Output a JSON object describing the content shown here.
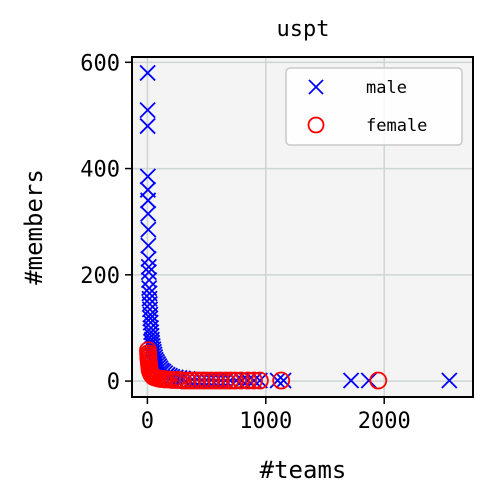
{
  "chart_data": {
    "type": "scatter",
    "title": "uspt",
    "xlabel": "#teams",
    "ylabel": "#members",
    "xlim": [
      -130,
      2750
    ],
    "ylim": [
      -30,
      610
    ],
    "xticks": [
      0,
      1000,
      2000
    ],
    "yticks": [
      0,
      200,
      400,
      600
    ],
    "x_tick_labels": [
      "0",
      "1000",
      "2000"
    ],
    "y_tick_labels": [
      "0",
      "200",
      "400",
      "600"
    ],
    "grid": true,
    "legend_position": "top-right",
    "series": [
      {
        "name": "male",
        "marker": "x",
        "color": "#0000ff",
        "points": [
          [
            2,
            580
          ],
          [
            2,
            510
          ],
          [
            2,
            480
          ],
          [
            4,
            385
          ],
          [
            4,
            360
          ],
          [
            6,
            340
          ],
          [
            6,
            315
          ],
          [
            8,
            285
          ],
          [
            8,
            255
          ],
          [
            10,
            230
          ],
          [
            12,
            215
          ],
          [
            12,
            205
          ],
          [
            14,
            190
          ],
          [
            15,
            175
          ],
          [
            18,
            165
          ],
          [
            18,
            155
          ],
          [
            20,
            145
          ],
          [
            22,
            135
          ],
          [
            25,
            125
          ],
          [
            25,
            118
          ],
          [
            28,
            110
          ],
          [
            30,
            100
          ],
          [
            32,
            92
          ],
          [
            35,
            85
          ],
          [
            38,
            78
          ],
          [
            40,
            72
          ],
          [
            45,
            66
          ],
          [
            50,
            60
          ],
          [
            55,
            55
          ],
          [
            60,
            50
          ],
          [
            65,
            45
          ],
          [
            70,
            40
          ],
          [
            80,
            36
          ],
          [
            90,
            32
          ],
          [
            100,
            28
          ],
          [
            110,
            24
          ],
          [
            120,
            20
          ],
          [
            135,
            18
          ],
          [
            150,
            15
          ],
          [
            170,
            12
          ],
          [
            190,
            10
          ],
          [
            210,
            8
          ],
          [
            240,
            7
          ],
          [
            270,
            6
          ],
          [
            300,
            5
          ],
          [
            340,
            4
          ],
          [
            380,
            3
          ],
          [
            420,
            3
          ],
          [
            460,
            2
          ],
          [
            500,
            2
          ],
          [
            540,
            2
          ],
          [
            580,
            1
          ],
          [
            620,
            1
          ],
          [
            660,
            1
          ],
          [
            700,
            1
          ],
          [
            750,
            1
          ],
          [
            800,
            1
          ],
          [
            850,
            1
          ],
          [
            900,
            1
          ],
          [
            950,
            1
          ],
          [
            1100,
            1
          ],
          [
            1150,
            1
          ],
          [
            1720,
            1
          ],
          [
            1870,
            1
          ],
          [
            2550,
            1
          ]
        ]
      },
      {
        "name": "female",
        "marker": "o",
        "color": "#ff0000",
        "points": [
          [
            5,
            58
          ],
          [
            6,
            52
          ],
          [
            8,
            48
          ],
          [
            8,
            44
          ],
          [
            10,
            40
          ],
          [
            12,
            36
          ],
          [
            14,
            32
          ],
          [
            16,
            28
          ],
          [
            18,
            24
          ],
          [
            20,
            20
          ],
          [
            25,
            17
          ],
          [
            30,
            14
          ],
          [
            35,
            12
          ],
          [
            40,
            10
          ],
          [
            50,
            8
          ],
          [
            60,
            7
          ],
          [
            75,
            6
          ],
          [
            90,
            5
          ],
          [
            110,
            4
          ],
          [
            130,
            4
          ],
          [
            150,
            3
          ],
          [
            180,
            3
          ],
          [
            210,
            2
          ],
          [
            240,
            2
          ],
          [
            270,
            2
          ],
          [
            300,
            1
          ],
          [
            340,
            1
          ],
          [
            380,
            1
          ],
          [
            420,
            1
          ],
          [
            460,
            1
          ],
          [
            500,
            1
          ],
          [
            540,
            1
          ],
          [
            580,
            1
          ],
          [
            620,
            1
          ],
          [
            660,
            1
          ],
          [
            700,
            1
          ],
          [
            740,
            1
          ],
          [
            790,
            1
          ],
          [
            850,
            1
          ],
          [
            900,
            1
          ],
          [
            950,
            1
          ],
          [
            1130,
            1
          ],
          [
            1950,
            1
          ]
        ]
      }
    ]
  }
}
